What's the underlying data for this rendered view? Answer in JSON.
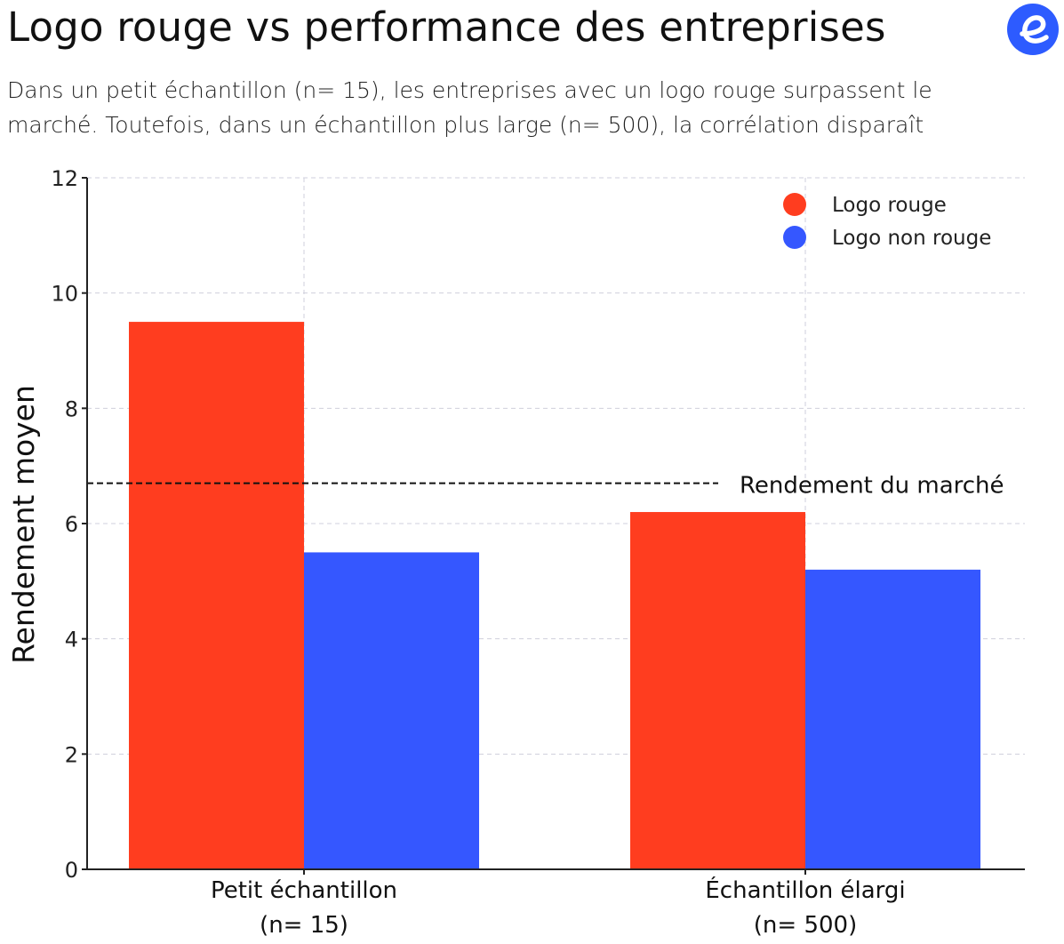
{
  "header": {
    "title": "Logo rouge vs performance des entreprises",
    "subtitle": "Dans un petit échantillon (n= 15), les entreprises avec un logo rouge surpassent le marché. Toutefois, dans un échantillon plus large (n= 500), la corrélation disparaît",
    "logo_icon": "e-logo-icon",
    "logo_color": "#2D5BFF"
  },
  "chart_data": {
    "type": "bar",
    "title": "",
    "xlabel": "",
    "ylabel": "Rendement moyen",
    "ylim": [
      0,
      12
    ],
    "yticks": [
      "0",
      "2",
      "4",
      "6",
      "8",
      "10",
      "12"
    ],
    "categories": [
      [
        "Petit échantillon",
        "(n= 15)"
      ],
      [
        "Échantillon élargi",
        "(n= 500)"
      ]
    ],
    "series": [
      {
        "name": "Logo rouge",
        "color": "#FF3D1F",
        "values": [
          9.5,
          6.2
        ]
      },
      {
        "name": "Logo non rouge",
        "color": "#3557FF",
        "values": [
          5.5,
          5.2
        ]
      }
    ],
    "reference_line": {
      "label": "Rendement du marché",
      "value": 6.7,
      "style": "dashed"
    },
    "grid": true,
    "legend_position": "top-right"
  }
}
